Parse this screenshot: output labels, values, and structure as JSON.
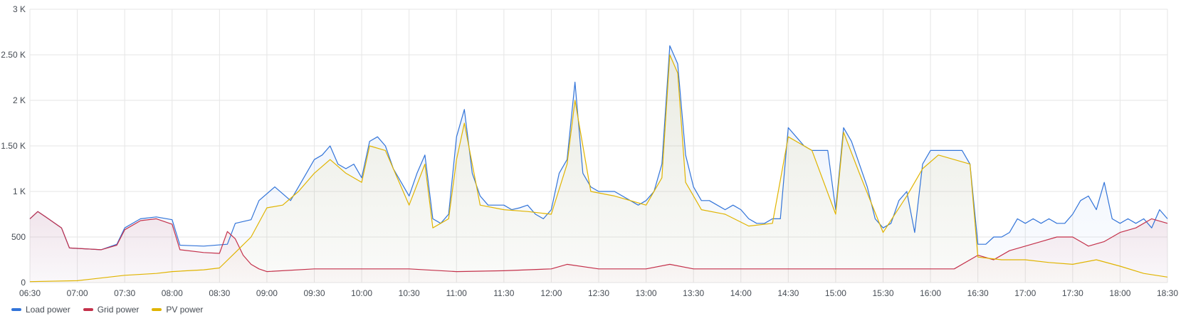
{
  "chart_data": {
    "type": "line",
    "title": "",
    "xlabel": "",
    "ylabel": "",
    "x_range": [
      "06:30",
      "18:30"
    ],
    "ylim": [
      0,
      3000
    ],
    "grid": true,
    "legend_placement": "bottom-left",
    "x_ticks": [
      "06:30",
      "07:00",
      "07:30",
      "08:00",
      "08:30",
      "09:00",
      "09:30",
      "10:00",
      "10:30",
      "11:00",
      "11:30",
      "12:00",
      "12:30",
      "13:00",
      "13:30",
      "14:00",
      "14:30",
      "15:00",
      "15:30",
      "16:00",
      "16:30",
      "17:00",
      "17:30",
      "18:00",
      "18:30"
    ],
    "y_ticks": [
      {
        "value": 0,
        "label": "0"
      },
      {
        "value": 500,
        "label": "500"
      },
      {
        "value": 1000,
        "label": "1 K"
      },
      {
        "value": 1500,
        "label": "1.50 K"
      },
      {
        "value": 2000,
        "label": "2 K"
      },
      {
        "value": 2500,
        "label": "2.50 K"
      },
      {
        "value": 3000,
        "label": "3 K"
      }
    ],
    "series": [
      {
        "name": "Load power",
        "color": "#3274d9",
        "fill": true,
        "points": [
          [
            "06:30",
            700
          ],
          [
            "06:35",
            780
          ],
          [
            "06:40",
            720
          ],
          [
            "06:50",
            600
          ],
          [
            "06:55",
            380
          ],
          [
            "07:05",
            370
          ],
          [
            "07:15",
            360
          ],
          [
            "07:25",
            420
          ],
          [
            "07:30",
            600
          ],
          [
            "07:40",
            700
          ],
          [
            "07:50",
            720
          ],
          [
            "08:00",
            690
          ],
          [
            "08:05",
            410
          ],
          [
            "08:20",
            400
          ],
          [
            "08:35",
            420
          ],
          [
            "08:40",
            650
          ],
          [
            "08:50",
            690
          ],
          [
            "08:55",
            900
          ],
          [
            "09:05",
            1050
          ],
          [
            "09:15",
            900
          ],
          [
            "09:25",
            1200
          ],
          [
            "09:30",
            1350
          ],
          [
            "09:35",
            1400
          ],
          [
            "09:40",
            1500
          ],
          [
            "09:45",
            1300
          ],
          [
            "09:50",
            1250
          ],
          [
            "09:55",
            1300
          ],
          [
            "10:00",
            1150
          ],
          [
            "10:05",
            1550
          ],
          [
            "10:10",
            1600
          ],
          [
            "10:15",
            1500
          ],
          [
            "10:20",
            1250
          ],
          [
            "10:25",
            1100
          ],
          [
            "10:30",
            950
          ],
          [
            "10:35",
            1200
          ],
          [
            "10:40",
            1400
          ],
          [
            "10:45",
            700
          ],
          [
            "10:50",
            650
          ],
          [
            "10:55",
            750
          ],
          [
            "11:00",
            1600
          ],
          [
            "11:05",
            1900
          ],
          [
            "11:10",
            1200
          ],
          [
            "11:15",
            950
          ],
          [
            "11:20",
            850
          ],
          [
            "11:25",
            850
          ],
          [
            "11:30",
            850
          ],
          [
            "11:35",
            800
          ],
          [
            "11:40",
            820
          ],
          [
            "11:45",
            850
          ],
          [
            "11:50",
            750
          ],
          [
            "11:55",
            700
          ],
          [
            "12:00",
            800
          ],
          [
            "12:05",
            1200
          ],
          [
            "12:10",
            1350
          ],
          [
            "12:15",
            2200
          ],
          [
            "12:20",
            1200
          ],
          [
            "12:25",
            1050
          ],
          [
            "12:30",
            1000
          ],
          [
            "12:35",
            1000
          ],
          [
            "12:40",
            1000
          ],
          [
            "12:45",
            950
          ],
          [
            "12:50",
            900
          ],
          [
            "12:55",
            850
          ],
          [
            "13:00",
            900
          ],
          [
            "13:05",
            1000
          ],
          [
            "13:10",
            1300
          ],
          [
            "13:15",
            2600
          ],
          [
            "13:20",
            2400
          ],
          [
            "13:25",
            1400
          ],
          [
            "13:30",
            1050
          ],
          [
            "13:35",
            900
          ],
          [
            "13:40",
            900
          ],
          [
            "13:45",
            850
          ],
          [
            "13:50",
            800
          ],
          [
            "13:55",
            850
          ],
          [
            "14:00",
            800
          ],
          [
            "14:05",
            700
          ],
          [
            "14:10",
            650
          ],
          [
            "14:15",
            650
          ],
          [
            "14:20",
            700
          ],
          [
            "14:25",
            700
          ],
          [
            "14:30",
            1700
          ],
          [
            "14:35",
            1600
          ],
          [
            "14:40",
            1500
          ],
          [
            "14:45",
            1450
          ],
          [
            "14:50",
            1450
          ],
          [
            "14:55",
            1450
          ],
          [
            "15:00",
            800
          ],
          [
            "15:05",
            1700
          ],
          [
            "15:10",
            1550
          ],
          [
            "15:15",
            1300
          ],
          [
            "15:20",
            1050
          ],
          [
            "15:25",
            700
          ],
          [
            "15:30",
            600
          ],
          [
            "15:35",
            650
          ],
          [
            "15:40",
            900
          ],
          [
            "15:45",
            1000
          ],
          [
            "15:50",
            550
          ],
          [
            "15:55",
            1300
          ],
          [
            "16:00",
            1450
          ],
          [
            "16:05",
            1450
          ],
          [
            "16:10",
            1450
          ],
          [
            "16:15",
            1450
          ],
          [
            "16:20",
            1450
          ],
          [
            "16:25",
            1300
          ],
          [
            "16:30",
            420
          ],
          [
            "16:35",
            420
          ],
          [
            "16:40",
            500
          ],
          [
            "16:45",
            500
          ],
          [
            "16:50",
            550
          ],
          [
            "16:55",
            700
          ],
          [
            "17:00",
            650
          ],
          [
            "17:05",
            700
          ],
          [
            "17:10",
            650
          ],
          [
            "17:15",
            700
          ],
          [
            "17:20",
            650
          ],
          [
            "17:25",
            650
          ],
          [
            "17:30",
            750
          ],
          [
            "17:35",
            900
          ],
          [
            "17:40",
            950
          ],
          [
            "17:45",
            800
          ],
          [
            "17:50",
            1100
          ],
          [
            "17:55",
            700
          ],
          [
            "18:00",
            650
          ],
          [
            "18:05",
            700
          ],
          [
            "18:10",
            650
          ],
          [
            "18:15",
            700
          ],
          [
            "18:20",
            600
          ],
          [
            "18:25",
            800
          ],
          [
            "18:30",
            700
          ]
        ]
      },
      {
        "name": "Grid power",
        "color": "#c4314b",
        "fill": true,
        "points": [
          [
            "06:30",
            700
          ],
          [
            "06:35",
            780
          ],
          [
            "06:40",
            720
          ],
          [
            "06:50",
            600
          ],
          [
            "06:55",
            380
          ],
          [
            "07:05",
            370
          ],
          [
            "07:15",
            360
          ],
          [
            "07:25",
            410
          ],
          [
            "07:30",
            580
          ],
          [
            "07:40",
            680
          ],
          [
            "07:50",
            700
          ],
          [
            "08:00",
            640
          ],
          [
            "08:05",
            360
          ],
          [
            "08:20",
            330
          ],
          [
            "08:30",
            320
          ],
          [
            "08:35",
            560
          ],
          [
            "08:40",
            480
          ],
          [
            "08:45",
            300
          ],
          [
            "08:50",
            200
          ],
          [
            "08:55",
            150
          ],
          [
            "09:00",
            120
          ],
          [
            "09:30",
            150
          ],
          [
            "10:00",
            150
          ],
          [
            "10:30",
            150
          ],
          [
            "11:00",
            120
          ],
          [
            "11:30",
            130
          ],
          [
            "12:00",
            150
          ],
          [
            "12:10",
            200
          ],
          [
            "12:30",
            150
          ],
          [
            "13:00",
            150
          ],
          [
            "13:15",
            200
          ],
          [
            "13:30",
            150
          ],
          [
            "14:00",
            150
          ],
          [
            "14:30",
            150
          ],
          [
            "15:00",
            150
          ],
          [
            "15:30",
            150
          ],
          [
            "16:00",
            150
          ],
          [
            "16:15",
            150
          ],
          [
            "16:30",
            300
          ],
          [
            "16:40",
            250
          ],
          [
            "16:50",
            350
          ],
          [
            "17:00",
            400
          ],
          [
            "17:10",
            450
          ],
          [
            "17:20",
            500
          ],
          [
            "17:30",
            500
          ],
          [
            "17:40",
            400
          ],
          [
            "17:50",
            450
          ],
          [
            "18:00",
            550
          ],
          [
            "18:10",
            600
          ],
          [
            "18:20",
            700
          ],
          [
            "18:30",
            650
          ]
        ]
      },
      {
        "name": "PV power",
        "color": "#e0b400",
        "fill": true,
        "points": [
          [
            "06:30",
            10
          ],
          [
            "07:00",
            20
          ],
          [
            "07:30",
            80
          ],
          [
            "07:50",
            100
          ],
          [
            "08:00",
            120
          ],
          [
            "08:20",
            140
          ],
          [
            "08:30",
            160
          ],
          [
            "08:40",
            330
          ],
          [
            "08:50",
            500
          ],
          [
            "09:00",
            820
          ],
          [
            "09:10",
            850
          ],
          [
            "09:20",
            1000
          ],
          [
            "09:30",
            1200
          ],
          [
            "09:40",
            1350
          ],
          [
            "09:50",
            1200
          ],
          [
            "10:00",
            1100
          ],
          [
            "10:05",
            1500
          ],
          [
            "10:15",
            1450
          ],
          [
            "10:30",
            850
          ],
          [
            "10:40",
            1300
          ],
          [
            "10:45",
            600
          ],
          [
            "10:55",
            700
          ],
          [
            "11:00",
            1350
          ],
          [
            "11:05",
            1750
          ],
          [
            "11:15",
            850
          ],
          [
            "11:30",
            800
          ],
          [
            "11:45",
            780
          ],
          [
            "12:00",
            750
          ],
          [
            "12:10",
            1300
          ],
          [
            "12:15",
            2000
          ],
          [
            "12:25",
            1000
          ],
          [
            "12:40",
            950
          ],
          [
            "13:00",
            850
          ],
          [
            "13:10",
            1150
          ],
          [
            "13:15",
            2500
          ],
          [
            "13:20",
            2300
          ],
          [
            "13:25",
            1100
          ],
          [
            "13:35",
            800
          ],
          [
            "13:50",
            750
          ],
          [
            "14:05",
            620
          ],
          [
            "14:20",
            650
          ],
          [
            "14:30",
            1600
          ],
          [
            "14:45",
            1450
          ],
          [
            "15:00",
            750
          ],
          [
            "15:05",
            1650
          ],
          [
            "15:15",
            1200
          ],
          [
            "15:30",
            550
          ],
          [
            "15:45",
            950
          ],
          [
            "15:55",
            1250
          ],
          [
            "16:05",
            1400
          ],
          [
            "16:25",
            1300
          ],
          [
            "16:30",
            280
          ],
          [
            "16:45",
            250
          ],
          [
            "17:00",
            250
          ],
          [
            "17:15",
            220
          ],
          [
            "17:30",
            200
          ],
          [
            "17:45",
            250
          ],
          [
            "18:00",
            180
          ],
          [
            "18:15",
            100
          ],
          [
            "18:30",
            60
          ]
        ]
      }
    ]
  }
}
